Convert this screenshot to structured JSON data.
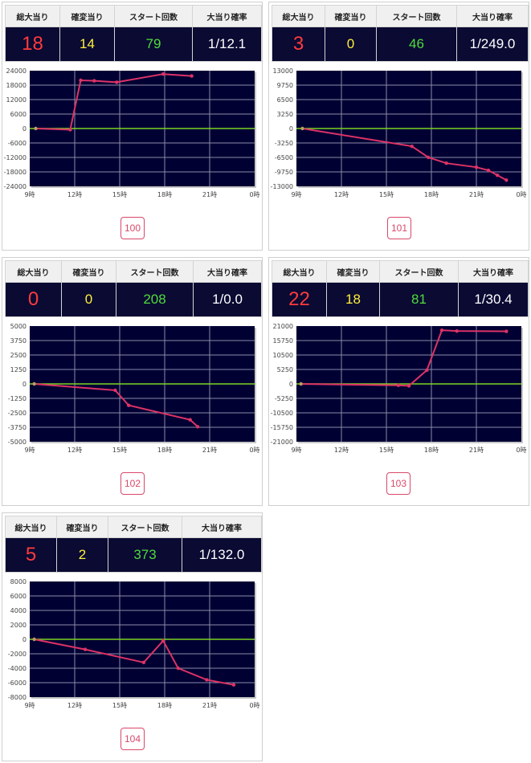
{
  "headers": {
    "total": "総大当り",
    "kakuhen": "確変当り",
    "start": "スタート回数",
    "prob": "大当り確率"
  },
  "colors": {
    "plot_bg": "#000033",
    "grid": "#8c8ca8",
    "zero_line": "#7ed321",
    "series": "#dd3366",
    "total": "#ff3b3b",
    "kakuhen": "#ffef3a",
    "start": "#4fdc3a"
  },
  "panels": [
    {
      "total": "18",
      "kakuhen": "14",
      "start": "79",
      "prob": "1/12.1",
      "machine": "100",
      "chart_data": {
        "type": "line",
        "x_ticks": [
          "9時",
          "12時",
          "15時",
          "18時",
          "21時",
          "0時"
        ],
        "xlim": [
          9,
          24
        ],
        "ylim": [
          -24000,
          24000
        ],
        "y_ticks": [
          "24000",
          "18000",
          "12000",
          "6000",
          "0",
          "-6000",
          "-12000",
          "-18000",
          "-24000"
        ],
        "x": [
          9.4,
          11.7,
          12.4,
          13.3,
          14.8,
          17.9,
          19.8
        ],
        "y": [
          0,
          -500,
          20000,
          19800,
          19200,
          22600,
          21800
        ]
      }
    },
    {
      "total": "3",
      "kakuhen": "0",
      "start": "46",
      "prob": "1/249.0",
      "machine": "101",
      "chart_data": {
        "type": "line",
        "x_ticks": [
          "9時",
          "12時",
          "15時",
          "18時",
          "21時",
          "0時"
        ],
        "xlim": [
          9,
          24
        ],
        "ylim": [
          -13000,
          13000
        ],
        "y_ticks": [
          "13000",
          "9750",
          "6500",
          "3250",
          "0",
          "-3250",
          "-6500",
          "-9750",
          "-13000"
        ],
        "x": [
          9.4,
          16.7,
          17.8,
          19.0,
          21.0,
          21.8,
          22.4,
          23.0
        ],
        "y": [
          0,
          -4000,
          -6500,
          -7800,
          -8700,
          -9400,
          -10500,
          -11600
        ]
      }
    },
    {
      "total": "0",
      "kakuhen": "0",
      "start": "208",
      "prob": "1/0.0",
      "machine": "102",
      "chart_data": {
        "type": "line",
        "x_ticks": [
          "9時",
          "12時",
          "15時",
          "18時",
          "21時",
          "0時"
        ],
        "xlim": [
          9,
          24
        ],
        "ylim": [
          -5000,
          5000
        ],
        "y_ticks": [
          "5000",
          "3750",
          "2500",
          "1250",
          "0",
          "-1250",
          "-2500",
          "-3750",
          "-5000"
        ],
        "x": [
          9.3,
          14.7,
          15.6,
          19.7,
          20.2
        ],
        "y": [
          0,
          -550,
          -1850,
          -3100,
          -3700
        ]
      }
    },
    {
      "total": "22",
      "kakuhen": "18",
      "start": "81",
      "prob": "1/30.4",
      "machine": "103",
      "chart_data": {
        "type": "line",
        "x_ticks": [
          "9時",
          "12時",
          "15時",
          "18時",
          "21時",
          "0時"
        ],
        "xlim": [
          9,
          24
        ],
        "ylim": [
          -21000,
          21000
        ],
        "y_ticks": [
          "21000",
          "15750",
          "10500",
          "5250",
          "0",
          "-5250",
          "-10500",
          "-15750",
          "-21000"
        ],
        "x": [
          9.3,
          15.8,
          16.5,
          17.7,
          18.7,
          19.7,
          23.0
        ],
        "y": [
          0,
          -500,
          -700,
          5000,
          19500,
          19200,
          19100
        ]
      }
    },
    {
      "total": "5",
      "kakuhen": "2",
      "start": "373",
      "prob": "1/132.0",
      "machine": "104",
      "chart_data": {
        "type": "line",
        "x_ticks": [
          "9時",
          "12時",
          "15時",
          "18時",
          "21時",
          "0時"
        ],
        "xlim": [
          9,
          24
        ],
        "ylim": [
          -8000,
          8000
        ],
        "y_ticks": [
          "8000",
          "6000",
          "4000",
          "2000",
          "0",
          "-2000",
          "-4000",
          "-6000",
          "-8000"
        ],
        "x": [
          9.3,
          12.7,
          16.6,
          17.9,
          18.9,
          20.8,
          22.6
        ],
        "y": [
          0,
          -1400,
          -3200,
          -200,
          -4000,
          -5600,
          -6300
        ]
      }
    }
  ]
}
